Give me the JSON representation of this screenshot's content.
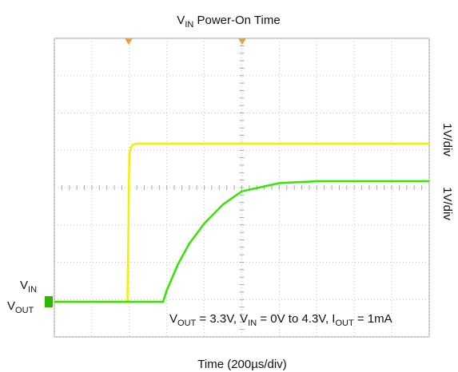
{
  "chart_data": {
    "type": "line",
    "title": [
      {
        "text": "V"
      },
      {
        "sub": "IN"
      },
      {
        "text": " Power-On Time"
      }
    ],
    "x_label": "Time (200µs/div)",
    "y_labels": [
      "1V/div",
      "1V/div"
    ],
    "annotation": [
      {
        "text": "V"
      },
      {
        "sub": "OUT"
      },
      {
        "text": " = 3.3V, V"
      },
      {
        "sub": "IN"
      },
      {
        "text": " = 0V to 4.3V, I"
      },
      {
        "sub": "OUT"
      },
      {
        "text": " = 1mA"
      }
    ],
    "xlim": [
      0,
      10
    ],
    "ylim": [
      0,
      8
    ],
    "xticks": [
      0,
      1,
      2,
      3,
      4,
      5,
      6,
      7,
      8,
      9,
      10
    ],
    "yticks": [
      0,
      1,
      2,
      3,
      4,
      5,
      6,
      7,
      8
    ],
    "grid": true,
    "x": [
      0,
      1,
      1.95,
      2.0,
      2.05,
      2.1,
      2.2,
      2.5,
      2.9,
      3.0,
      3.3,
      3.6,
      4.0,
      4.5,
      5.0,
      6,
      7,
      8,
      9,
      10
    ],
    "series": [
      {
        "name": [
          {
            "text": "V"
          },
          {
            "sub": "IN"
          }
        ],
        "color": "#f2f200",
        "values": [
          0.94,
          0.94,
          0.94,
          4.9,
          5.1,
          5.15,
          5.18,
          5.18,
          5.18,
          5.18,
          5.18,
          5.18,
          5.18,
          5.18,
          5.18,
          5.18,
          5.18,
          5.18,
          5.18,
          5.18
        ]
      },
      {
        "name": [
          {
            "text": "V"
          },
          {
            "sub": "OUT"
          }
        ],
        "color": "#33e600",
        "values": [
          0.94,
          0.94,
          0.94,
          0.94,
          0.94,
          0.94,
          0.94,
          0.94,
          0.94,
          1.25,
          1.95,
          2.5,
          3.04,
          3.55,
          3.9,
          4.12,
          4.17,
          4.17,
          4.17,
          4.17
        ]
      }
    ]
  }
}
